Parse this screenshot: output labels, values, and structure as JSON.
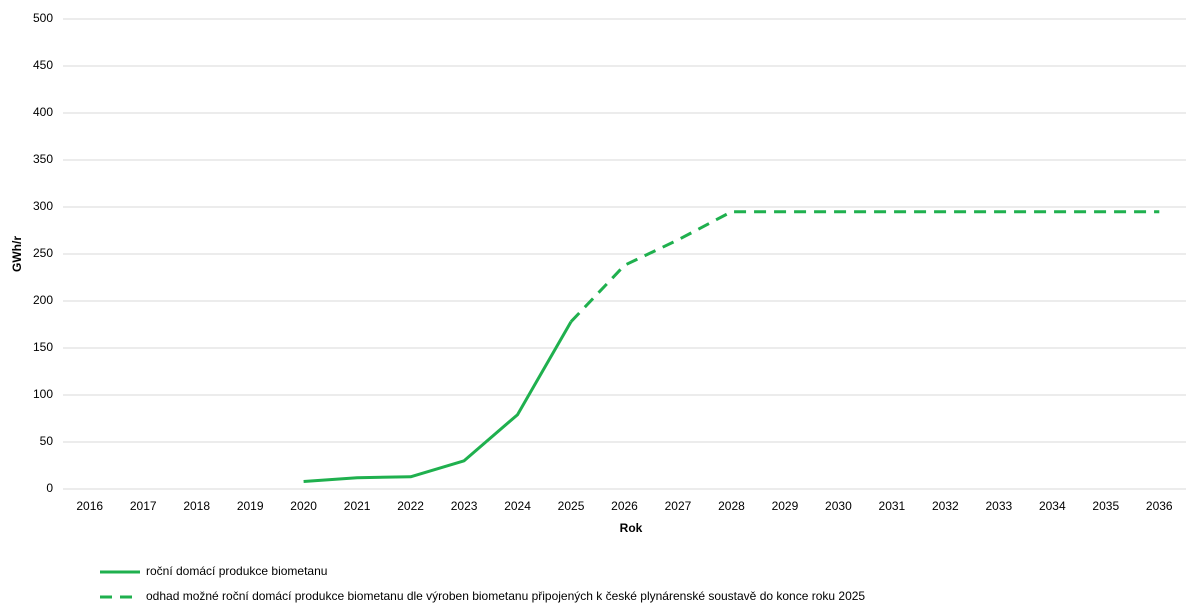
{
  "chart_data": {
    "type": "line",
    "ylabel": "GWh/r",
    "xlabel": "Rok",
    "categories": [
      "2016",
      "2017",
      "2018",
      "2019",
      "2020",
      "2021",
      "2022",
      "2023",
      "2024",
      "2025",
      "2026",
      "2027",
      "2028",
      "2029",
      "2030",
      "2031",
      "2032",
      "2033",
      "2034",
      "2035",
      "2036"
    ],
    "series": [
      {
        "name": "roční domácí produkce biometanu",
        "color": "#1fb04e",
        "dashed": false,
        "values": [
          null,
          null,
          null,
          null,
          8,
          12,
          13,
          30,
          79,
          178,
          null,
          null,
          null,
          null,
          null,
          null,
          null,
          null,
          null,
          null,
          null
        ]
      },
      {
        "name": "odhad možné roční domácí produkce biometanu dle výroben biometanu připojených k české plynárenské soustavě do konce roku 2025",
        "color": "#1fb04e",
        "dashed": true,
        "values": [
          null,
          null,
          null,
          null,
          null,
          null,
          null,
          null,
          null,
          178,
          238,
          265,
          295,
          295,
          295,
          295,
          295,
          295,
          295,
          295,
          295
        ]
      }
    ],
    "ylim": [
      0,
      500
    ],
    "yticks": [
      0,
      50,
      100,
      150,
      200,
      250,
      300,
      350,
      400,
      450,
      500
    ],
    "grid": true
  }
}
